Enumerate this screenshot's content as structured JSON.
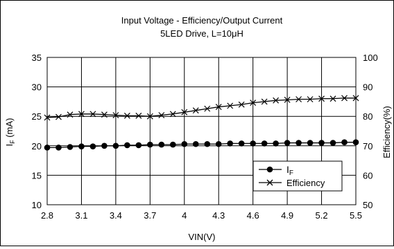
{
  "chart_data": {
    "type": "line",
    "title": "Input Voltage  -  Efficiency/Output Current",
    "subtitle": "5LED Drive,  L=10μH",
    "xlabel": "VIN(V)",
    "ylabel_left": "IF (mA)",
    "ylabel_left_main": "I",
    "ylabel_left_sub": "F",
    "ylabel_left_unit": " (mA)",
    "ylabel_right": "Efficiency(%)",
    "x_ticks": [
      "2.8",
      "3.1",
      "3.4",
      "3.7",
      "4",
      "4.3",
      "4.6",
      "4.9",
      "5.2",
      "5.5"
    ],
    "x_range": [
      2.8,
      5.5
    ],
    "y_left_ticks": [
      "10",
      "15",
      "20",
      "25",
      "30",
      "35"
    ],
    "y_left_range": [
      10,
      35
    ],
    "y_right_ticks": [
      "50",
      "60",
      "70",
      "80",
      "90",
      "100"
    ],
    "y_right_range": [
      50,
      100
    ],
    "grid": true,
    "legend_position": "bottom-right",
    "x": [
      2.8,
      2.9,
      3.0,
      3.1,
      3.2,
      3.3,
      3.4,
      3.5,
      3.6,
      3.7,
      3.8,
      3.9,
      4.0,
      4.1,
      4.2,
      4.3,
      4.4,
      4.5,
      4.6,
      4.7,
      4.8,
      4.9,
      5.0,
      5.1,
      5.2,
      5.3,
      5.4,
      5.5
    ],
    "series": [
      {
        "name": "IF",
        "name_main": "I",
        "name_sub": "F",
        "axis": "left",
        "marker": "circle",
        "values": [
          19.7,
          19.7,
          19.8,
          19.9,
          19.9,
          20.0,
          20.0,
          20.1,
          20.1,
          20.2,
          20.2,
          20.2,
          20.3,
          20.3,
          20.3,
          20.3,
          20.4,
          20.4,
          20.4,
          20.4,
          20.4,
          20.5,
          20.5,
          20.5,
          20.5,
          20.5,
          20.6,
          20.6
        ]
      },
      {
        "name": "Efficiency",
        "axis": "right",
        "marker": "x",
        "values": [
          79.6,
          79.8,
          80.6,
          80.8,
          80.8,
          80.6,
          80.4,
          80.2,
          80.2,
          80.0,
          80.4,
          80.8,
          81.4,
          82.0,
          82.6,
          83.2,
          83.6,
          84.0,
          84.6,
          85.0,
          85.4,
          85.6,
          85.8,
          85.8,
          86.0,
          86.0,
          86.2,
          86.2
        ]
      }
    ]
  },
  "colors": {
    "line": "#000000",
    "grid": "#000000",
    "background": "#ffffff"
  }
}
